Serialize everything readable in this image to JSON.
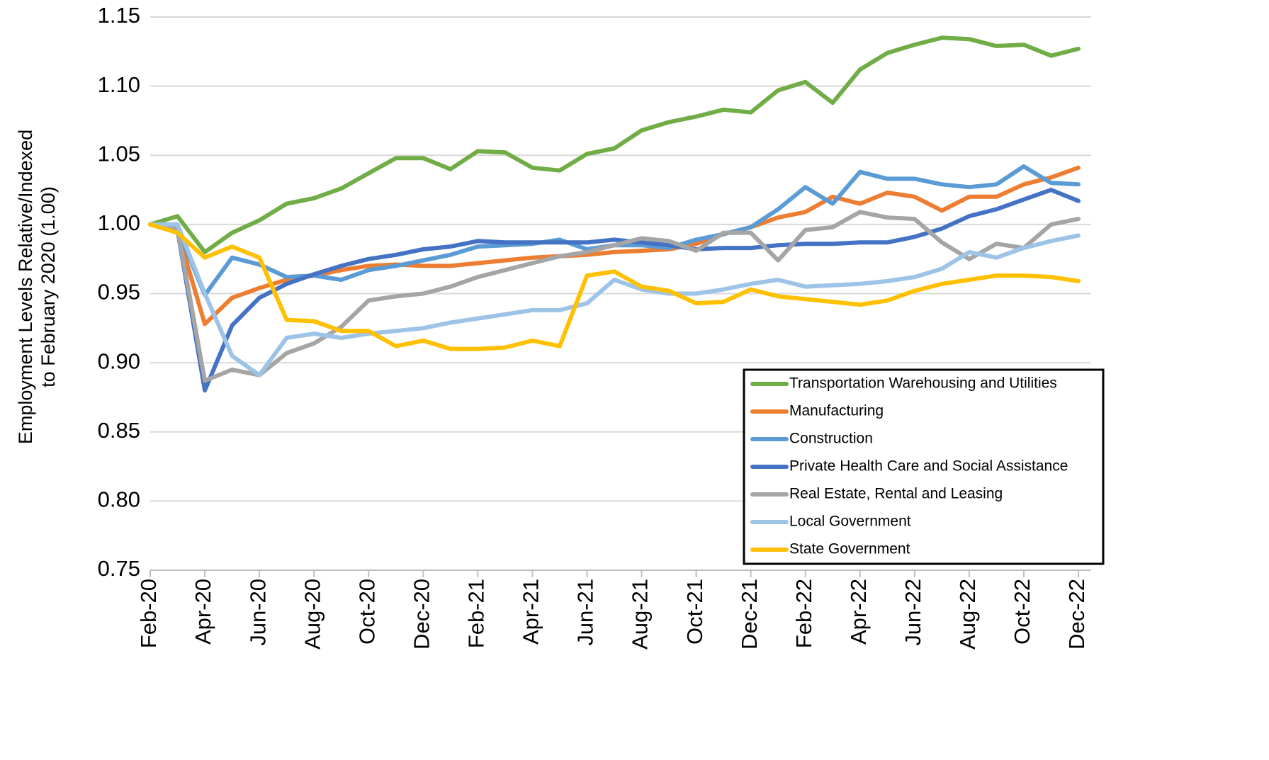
{
  "chart_data": {
    "type": "line",
    "ylabel": [
      "Employment Levels Relative/Indexed",
      "to February 2020 (1.00)"
    ],
    "categories": [
      "Feb-20",
      null,
      "Apr-20",
      null,
      "Jun-20",
      null,
      "Aug-20",
      null,
      "Oct-20",
      null,
      "Dec-20",
      null,
      "Feb-21",
      null,
      "Apr-21",
      null,
      "Jun-21",
      null,
      "Aug-21",
      null,
      "Oct-21",
      null,
      "Dec-21",
      null,
      "Feb-22",
      null,
      "Apr-22",
      null,
      "Jun-22",
      null,
      "Aug-22",
      null,
      "Oct-22",
      null,
      "Dec-22"
    ],
    "series": [
      {
        "name": "Transportation Warehousing and Utilities",
        "color": "#70ad47",
        "values": [
          1.0,
          1.006,
          0.98,
          0.994,
          1.003,
          1.015,
          1.019,
          1.026,
          1.037,
          1.048,
          1.048,
          1.04,
          1.053,
          1.052,
          1.041,
          1.039,
          1.051,
          1.055,
          1.068,
          1.074,
          1.078,
          1.083,
          1.081,
          1.097,
          1.103,
          1.088,
          1.112,
          1.124,
          1.13,
          1.135,
          1.134,
          1.129,
          1.13,
          1.122,
          1.127
        ]
      },
      {
        "name": "Manufacturing",
        "color": "#ed7d31",
        "values": [
          1.0,
          0.995,
          0.928,
          0.947,
          0.954,
          0.96,
          0.963,
          0.967,
          0.97,
          0.971,
          0.97,
          0.97,
          0.972,
          0.974,
          0.976,
          0.977,
          0.978,
          0.98,
          0.981,
          0.982,
          0.986,
          0.993,
          0.998,
          1.005,
          1.009,
          1.02,
          1.015,
          1.023,
          1.02,
          1.01,
          1.02,
          1.02,
          1.029,
          1.034,
          1.041
        ]
      },
      {
        "name": "Construction",
        "color": "#5b9bd5",
        "values": [
          1.0,
          0.997,
          0.949,
          0.976,
          0.971,
          0.962,
          0.963,
          0.96,
          0.967,
          0.97,
          0.974,
          0.978,
          0.984,
          0.985,
          0.986,
          0.989,
          0.982,
          0.985,
          0.985,
          0.983,
          0.989,
          0.993,
          0.998,
          1.011,
          1.027,
          1.015,
          1.038,
          1.033,
          1.033,
          1.029,
          1.027,
          1.029,
          1.042,
          1.03,
          1.029
        ]
      },
      {
        "name": "Private Health Care and Social Assistance",
        "color": "#4472c4",
        "values": [
          1.0,
          0.996,
          0.88,
          0.927,
          0.947,
          0.957,
          0.964,
          0.97,
          0.975,
          0.978,
          0.982,
          0.984,
          0.988,
          0.987,
          0.987,
          0.987,
          0.987,
          0.989,
          0.987,
          0.985,
          0.982,
          0.983,
          0.983,
          0.985,
          0.986,
          0.986,
          0.987,
          0.987,
          0.991,
          0.997,
          1.006,
          1.011,
          1.018,
          1.025,
          1.017
        ]
      },
      {
        "name": "Real Estate, Rental and Leasing",
        "color": "#a5a5a5",
        "values": [
          1.0,
          0.997,
          0.887,
          0.895,
          0.891,
          0.907,
          0.914,
          0.926,
          0.945,
          0.948,
          0.95,
          0.955,
          0.962,
          0.967,
          0.972,
          0.977,
          0.98,
          0.985,
          0.99,
          0.988,
          0.981,
          0.994,
          0.994,
          0.974,
          0.996,
          0.998,
          1.009,
          1.005,
          1.004,
          0.987,
          0.975,
          0.986,
          0.983,
          1.0,
          1.004
        ]
      },
      {
        "name": "Local Government",
        "color": "#9dc3e6",
        "values": [
          1.0,
          1.0,
          0.95,
          0.905,
          0.891,
          0.918,
          0.921,
          0.918,
          0.921,
          0.923,
          0.925,
          0.929,
          0.932,
          0.935,
          0.938,
          0.938,
          0.943,
          0.96,
          0.953,
          0.95,
          0.95,
          0.953,
          0.957,
          0.96,
          0.955,
          0.956,
          0.957,
          0.959,
          0.962,
          0.968,
          0.98,
          0.976,
          0.983,
          0.988,
          0.992
        ]
      },
      {
        "name": "State Government",
        "color": "#ffc000",
        "values": [
          1.0,
          0.994,
          0.976,
          0.984,
          0.976,
          0.931,
          0.93,
          0.923,
          0.923,
          0.912,
          0.916,
          0.91,
          0.91,
          0.911,
          0.916,
          0.912,
          0.963,
          0.966,
          0.955,
          0.952,
          0.943,
          0.944,
          0.953,
          0.948,
          0.946,
          0.944,
          0.942,
          0.945,
          0.952,
          0.957,
          0.96,
          0.963,
          0.963,
          0.962,
          0.959
        ]
      }
    ],
    "ylim": [
      0.75,
      1.15
    ],
    "yticks": [
      0.75,
      {
        "value": 0.8,
        "label": "0.80"
      },
      0.85,
      {
        "value": 0.9,
        "label": "0.90"
      },
      0.95,
      {
        "value": 1.0,
        "label": "1.00"
      },
      1.05,
      {
        "value": 1.1,
        "label": "1.10"
      },
      1.15
    ],
    "grid": true,
    "legend": "lower right"
  }
}
